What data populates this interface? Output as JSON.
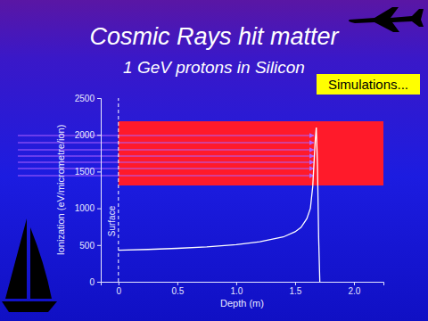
{
  "chart_data": {
    "type": "line",
    "title": "Cosmic Rays hit matter",
    "subtitle": "1 GeV protons in Silicon",
    "x_label": "Depth (m)",
    "y_label": "Ionization (eV/micrometre/ion)",
    "x": [
      0,
      0.25,
      0.5,
      0.75,
      1.0,
      1.2,
      1.4,
      1.5,
      1.55,
      1.6,
      1.63,
      1.65,
      1.67,
      1.68,
      1.69,
      1.7,
      1.71
    ],
    "series": [
      {
        "color": "#ffffff",
        "values": [
          430,
          440,
          455,
          475,
          505,
          545,
          610,
          680,
          740,
          860,
          1000,
          1300,
          1900,
          2100,
          1600,
          600,
          0
        ]
      }
    ],
    "xlim": [
      -0.15,
      2.25
    ],
    "xticks": [
      0,
      0.5,
      {
        "value": 1,
        "label": "1.0"
      },
      1.5,
      {
        "value": 2,
        "label": "2.0"
      }
    ],
    "ylim": [
      0,
      2500
    ],
    "yticks": [
      0,
      500,
      1000,
      1500,
      2000,
      2500
    ],
    "grid": false,
    "annotations": [
      {
        "text": "Surface",
        "x": 0
      },
      {
        "text": "Simulations..."
      }
    ]
  }
}
